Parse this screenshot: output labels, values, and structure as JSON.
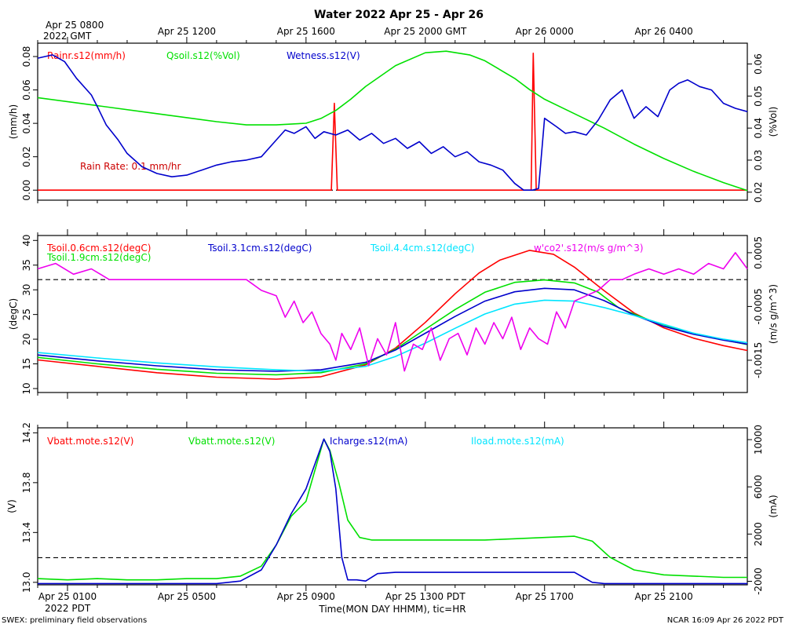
{
  "title": "Water 2022 Apr 25 - Apr 26",
  "xlabel": "Time(MON DAY HHMM), tic=HR",
  "footer_left": "SWEX: preliminary field observations",
  "footer_right": "NCAR 16:09 Apr 26 2022 PDT",
  "gmt_ticks": [
    "Apr 25 0800",
    "Apr 25 1200",
    "Apr 25 1600",
    "Apr 25 2000 GMT",
    "Apr 26 0000",
    "Apr 26 0400"
  ],
  "gmt_year": "2022 GMT",
  "pdt_ticks": [
    "Apr 25 0100",
    "Apr 25 0500",
    "Apr 25 0900",
    "Apr 25 1300 PDT",
    "Apr 25 1700",
    "Apr 25 2100"
  ],
  "pdt_year": "2022 PDT",
  "chart_data": [
    {
      "type": "line",
      "name": "rain-soil-panel",
      "x_unit": "hours since Apr 25 0000 PDT",
      "xlim": [
        0.0,
        23.8
      ],
      "y_left": {
        "label": "(mm/h)",
        "lim": [
          -0.006,
          0.088
        ],
        "ticks": [
          "0.00",
          "0.02",
          "0.04",
          "0.06",
          "0.08"
        ]
      },
      "y_right": {
        "label": "(%Vol)",
        "lim": [
          0.0175,
          0.0665
        ],
        "ticks": [
          "0.02",
          "0.03",
          "0.04",
          "0.05",
          "0.06"
        ]
      },
      "annotation": "Rain Rate: 0.1 mm/hr",
      "reference_line": 0.0,
      "series": [
        {
          "name": "Rainr.s12(mm/h)",
          "color": "#ff0000",
          "axis": "left",
          "x": [
            0,
            9.85,
            9.95,
            10.05,
            16.45,
            16.55,
            16.62,
            16.72,
            23.8
          ],
          "y": [
            0,
            0,
            0.052,
            0,
            0,
            0,
            0.082,
            0,
            0
          ]
        },
        {
          "name": "Qsoil.s12(%Vol)",
          "color": "#00e000",
          "axis": "right",
          "x": [
            0,
            2,
            4,
            6,
            7,
            8,
            9,
            9.5,
            10,
            10.5,
            11,
            12,
            13,
            13.7,
            14.5,
            15,
            16,
            16.5,
            17,
            18,
            19,
            20,
            21,
            22,
            23,
            23.8
          ],
          "y": [
            0.0495,
            0.047,
            0.0445,
            0.042,
            0.041,
            0.041,
            0.0415,
            0.043,
            0.0455,
            0.049,
            0.053,
            0.0595,
            0.0635,
            0.064,
            0.0628,
            0.061,
            0.0555,
            0.052,
            0.049,
            0.0445,
            0.04,
            0.035,
            0.0305,
            0.0265,
            0.023,
            0.0205
          ]
        },
        {
          "name": "Wetness.s12(V)",
          "color": "#0000cc",
          "axis": "left",
          "x": [
            0,
            0.5,
            0.9,
            1.3,
            1.8,
            2.0,
            2.3,
            2.7,
            3.0,
            3.5,
            4.0,
            4.5,
            5.0,
            5.5,
            6.0,
            6.5,
            7.0,
            7.5,
            8.0,
            8.3,
            8.6,
            9.0,
            9.3,
            9.6,
            10.0,
            10.4,
            10.8,
            11.2,
            11.6,
            12.0,
            12.4,
            12.8,
            13.2,
            13.6,
            14.0,
            14.4,
            14.8,
            15.2,
            15.6,
            16.0,
            16.3,
            16.6,
            16.8,
            17.0,
            17.4,
            17.7,
            18.0,
            18.4,
            18.8,
            19.2,
            19.6,
            20.0,
            20.4,
            20.8,
            21.2,
            21.5,
            21.8,
            22.2,
            22.6,
            23.0,
            23.4,
            23.8
          ],
          "y": [
            0.079,
            0.081,
            0.077,
            0.067,
            0.057,
            0.05,
            0.039,
            0.03,
            0.022,
            0.014,
            0.01,
            0.008,
            0.009,
            0.012,
            0.015,
            0.017,
            0.018,
            0.02,
            0.03,
            0.036,
            0.034,
            0.038,
            0.031,
            0.035,
            0.033,
            0.036,
            0.03,
            0.034,
            0.028,
            0.031,
            0.025,
            0.029,
            0.022,
            0.026,
            0.02,
            0.023,
            0.017,
            0.015,
            0.012,
            0.004,
            0.0,
            0.0,
            0.001,
            0.043,
            0.038,
            0.034,
            0.035,
            0.033,
            0.042,
            0.054,
            0.06,
            0.043,
            0.05,
            0.044,
            0.06,
            0.064,
            0.066,
            0.062,
            0.06,
            0.052,
            0.049,
            0.047
          ]
        }
      ]
    },
    {
      "type": "line",
      "name": "soil-temp-panel",
      "x_unit": "hours since Apr 25 0000 PDT",
      "xlim": [
        0.0,
        23.8
      ],
      "y_left": {
        "label": "(degC)",
        "lim": [
          9.2,
          41.0
        ],
        "ticks": [
          "10",
          "15",
          "20",
          "25",
          "30",
          "35",
          "40"
        ]
      },
      "y_right": {
        "label": "(m/s g/m^3)",
        "lim": [
          -0.0021,
          0.00082
        ],
        "ticks": [
          "-0.0015",
          "-0.0005",
          "0.0005"
        ]
      },
      "reference_line": 0.0,
      "series": [
        {
          "name": "Tsoil.0.6cm.s12(degC)",
          "color": "#ff0000",
          "axis": "left",
          "x": [
            0,
            2,
            4,
            6,
            8,
            9.5,
            11,
            12,
            13,
            14,
            14.8,
            15.5,
            16.5,
            17.3,
            18,
            19,
            20,
            21,
            22,
            23,
            23.8
          ],
          "y": [
            15.8,
            14.5,
            13.2,
            12.3,
            11.9,
            12.4,
            14.8,
            18.2,
            23.4,
            29.2,
            33.4,
            36.0,
            38.0,
            37.2,
            34.6,
            29.8,
            25.3,
            22.3,
            20.2,
            18.7,
            17.7
          ]
        },
        {
          "name": "Tsoil.1.9cm.s12(degC)",
          "color": "#00e000",
          "axis": "left",
          "x": [
            0,
            2,
            4,
            6,
            8,
            9.5,
            11,
            12,
            13,
            14,
            15,
            16,
            17,
            18,
            18.8,
            19.5,
            20.5,
            21.5,
            22.5,
            23.8
          ],
          "y": [
            16.3,
            15.0,
            13.9,
            13.1,
            12.8,
            13.2,
            15.0,
            18.0,
            22.0,
            26.0,
            29.5,
            31.5,
            32.0,
            31.4,
            29.5,
            26.3,
            23.9,
            21.9,
            20.5,
            18.9
          ]
        },
        {
          "name": "Tsoil.3.1cm.s12(degC)",
          "color": "#0000cc",
          "axis": "left",
          "x": [
            0,
            2,
            4,
            6,
            8,
            9.5,
            11,
            12,
            13,
            14,
            15,
            16,
            17,
            18,
            19,
            20,
            21,
            22,
            23,
            23.8
          ],
          "y": [
            16.8,
            15.6,
            14.6,
            13.8,
            13.5,
            13.8,
            15.3,
            17.8,
            21.2,
            24.6,
            27.7,
            29.6,
            30.3,
            30.0,
            27.8,
            24.9,
            22.6,
            21.0,
            19.8,
            19.0
          ]
        },
        {
          "name": "Tsoil.4.4cm.s12(degC)",
          "color": "#00e5ff",
          "axis": "left",
          "x": [
            0,
            2,
            4,
            6,
            8,
            9.5,
            11,
            12,
            13,
            14,
            15,
            16,
            17,
            18,
            19,
            20,
            21,
            22,
            23,
            23.8
          ],
          "y": [
            17.3,
            16.2,
            15.2,
            14.4,
            13.8,
            13.5,
            14.5,
            16.5,
            19.2,
            22.2,
            25.1,
            27.1,
            27.9,
            27.7,
            26.4,
            24.8,
            23.0,
            21.2,
            20.0,
            19.3
          ]
        },
        {
          "name": "w'co2'.s12(m/s g/m^3)",
          "color": "#ee00ee",
          "axis": "right",
          "x": [
            0,
            0.6,
            1.2,
            1.8,
            2.4,
            3.2,
            4.2,
            5.2,
            6.2,
            7.0,
            7.5,
            8.0,
            8.3,
            8.6,
            8.9,
            9.2,
            9.5,
            9.8,
            10.0,
            10.2,
            10.5,
            10.8,
            11.1,
            11.4,
            11.7,
            12.0,
            12.3,
            12.6,
            12.9,
            13.2,
            13.5,
            13.8,
            14.1,
            14.4,
            14.7,
            15.0,
            15.3,
            15.6,
            15.9,
            16.2,
            16.5,
            16.8,
            17.1,
            17.4,
            17.7,
            18.0,
            18.4,
            18.8,
            19.2,
            19.6,
            20.0,
            20.5,
            21.0,
            21.5,
            22.0,
            22.5,
            23.0,
            23.4,
            23.8
          ],
          "y": [
            0.0002,
            0.0003,
            0.0001,
            0.0002,
            0.0,
            0.0,
            0.0,
            0.0,
            0.0,
            0.0,
            -0.0002,
            -0.0003,
            -0.0007,
            -0.0004,
            -0.0008,
            -0.0006,
            -0.001,
            -0.0012,
            -0.0015,
            -0.001,
            -0.0013,
            -0.0009,
            -0.0016,
            -0.0011,
            -0.0014,
            -0.0008,
            -0.0017,
            -0.0012,
            -0.0013,
            -0.0009,
            -0.0015,
            -0.0011,
            -0.001,
            -0.0014,
            -0.0009,
            -0.0012,
            -0.0008,
            -0.0011,
            -0.0007,
            -0.0013,
            -0.0009,
            -0.0011,
            -0.0012,
            -0.0006,
            -0.0009,
            -0.0004,
            -0.0003,
            -0.0002,
            0.0,
            0.0,
            0.0001,
            0.0002,
            0.0001,
            0.0002,
            0.0001,
            0.0003,
            0.0002,
            0.0005,
            0.0002
          ]
        }
      ]
    },
    {
      "type": "line",
      "name": "power-panel",
      "x_unit": "hours since Apr 25 0000 PDT",
      "xlim": [
        0.0,
        23.8
      ],
      "y_left": {
        "label": "(V)",
        "lim": [
          12.98,
          14.24
        ],
        "ticks": [
          "13.0",
          "13.4",
          "13.8",
          "14.2"
        ]
      },
      "y_right": {
        "label": "(mA)",
        "lim": [
          -2300,
          11000
        ],
        "ticks": [
          "-2000",
          "2000",
          "6000",
          "10000"
        ]
      },
      "reference_line": 0.0,
      "series": [
        {
          "name": "Vbatt.mote.s12(V)",
          "color": "#ff0000",
          "axis": "left",
          "x": [],
          "y": []
        },
        {
          "name": "Vbatt.mote.s12(V)",
          "color": "#00e000",
          "axis": "left",
          "x": [
            0,
            1,
            2,
            3,
            4,
            5,
            6,
            6.8,
            7.5,
            8.0,
            8.5,
            9.0,
            9.3,
            9.6,
            9.8,
            10.1,
            10.4,
            10.8,
            11.2,
            12,
            13,
            14,
            15,
            16,
            17,
            18,
            18.6,
            19.2,
            20,
            21,
            22,
            23,
            23.8
          ],
          "y": [
            13.03,
            13.02,
            13.03,
            13.02,
            13.02,
            13.03,
            13.03,
            13.05,
            13.13,
            13.3,
            13.53,
            13.65,
            13.9,
            14.15,
            14.06,
            13.8,
            13.5,
            13.36,
            13.34,
            13.34,
            13.34,
            13.34,
            13.34,
            13.35,
            13.36,
            13.37,
            13.33,
            13.2,
            13.1,
            13.06,
            13.05,
            13.04,
            13.04
          ]
        },
        {
          "name": "Icharge.s12(mA)",
          "color": "#0000cc",
          "axis": "left",
          "x": [
            0,
            1,
            2,
            3,
            4,
            5,
            6,
            6.8,
            7.5,
            8.0,
            8.5,
            9.0,
            9.3,
            9.6,
            9.8,
            10.0,
            10.2,
            10.4,
            10.7,
            11.0,
            11.4,
            12,
            13,
            14,
            15,
            16,
            17,
            18,
            18.3,
            18.6,
            19,
            20,
            21,
            22,
            23,
            23.8
          ],
          "y": [
            12.99,
            12.99,
            12.99,
            12.99,
            12.99,
            12.99,
            12.99,
            13.01,
            13.1,
            13.3,
            13.55,
            13.75,
            13.95,
            14.15,
            14.05,
            13.75,
            13.2,
            13.02,
            13.02,
            13.01,
            13.07,
            13.08,
            13.08,
            13.08,
            13.08,
            13.08,
            13.08,
            13.08,
            13.04,
            13.0,
            12.99,
            12.99,
            12.99,
            12.99,
            12.99,
            12.99
          ]
        },
        {
          "name": "Iload.mote.s12(mA)",
          "color": "#00e5ff",
          "axis": "right",
          "x": [],
          "y": []
        }
      ]
    }
  ]
}
